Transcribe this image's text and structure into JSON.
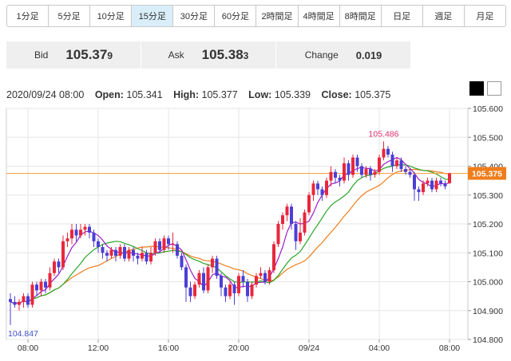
{
  "timeframes": [
    "1分足",
    "5分足",
    "10分足",
    "15分足",
    "30分足",
    "60分足",
    "2時間足",
    "4時間足",
    "8時間足",
    "日足",
    "週足",
    "月足"
  ],
  "active_timeframe": "15分足",
  "quote": {
    "bid_label": "Bid",
    "bid_main": "105.37",
    "bid_pip": "9",
    "ask_label": "Ask",
    "ask_main": "105.38",
    "ask_pip": "3",
    "change_label": "Change",
    "change_value": "0.019"
  },
  "ohlc": {
    "datetime": "2020/09/24 08:00",
    "open_label": "Open:",
    "open": "105.341",
    "high_label": "High:",
    "high": "105.377",
    "low_label": "Low:",
    "low": "105.339",
    "close_label": "Close:",
    "close": "105.375"
  },
  "theme_buttons": [
    "dark-theme",
    "light-theme"
  ],
  "colors": {
    "up": "#e8273c",
    "down": "#4b3fd4",
    "ma_short": "#9b1fc4",
    "ma_mid": "#2aa52a",
    "ma_long": "#ef7d1a",
    "price_line": "#f29b38",
    "price_tag": "#ef7d1a"
  },
  "chart_data": {
    "type": "candlestick",
    "ylim": [
      104.8,
      105.6
    ],
    "y_ticks": [
      "104.800",
      "104.900",
      "105.000",
      "105.100",
      "105.200",
      "105.300",
      "105.400",
      "105.500",
      "105.600"
    ],
    "x_ticks": [
      {
        "label": "08:00",
        "index": 4
      },
      {
        "label": "12:00",
        "index": 20
      },
      {
        "label": "16:00",
        "index": 36
      },
      {
        "label": "20:00",
        "index": 52
      },
      {
        "label": "09/24",
        "index": 68
      },
      {
        "label": "04:00",
        "index": 84
      },
      {
        "label": "08:00",
        "index": 100
      }
    ],
    "current_price": "105.375",
    "high_annotation": "105.486",
    "low_annotation": "104.847",
    "candles": [
      [
        104.94,
        104.93,
        104.96,
        104.85
      ],
      [
        104.93,
        104.92,
        104.95,
        104.91
      ],
      [
        104.92,
        104.93,
        104.94,
        104.9
      ],
      [
        104.93,
        104.95,
        104.96,
        104.91
      ],
      [
        104.95,
        104.92,
        104.96,
        104.91
      ],
      [
        104.92,
        104.99,
        105.0,
        104.91
      ],
      [
        104.99,
        104.97,
        105.0,
        104.95
      ],
      [
        104.97,
        105.0,
        105.01,
        104.95
      ],
      [
        105.0,
        104.98,
        105.01,
        104.96
      ],
      [
        104.98,
        105.03,
        105.05,
        104.97
      ],
      [
        105.03,
        105.07,
        105.08,
        105.02
      ],
      [
        105.07,
        105.05,
        105.08,
        105.03
      ],
      [
        105.05,
        105.14,
        105.16,
        105.04
      ],
      [
        105.14,
        105.15,
        105.17,
        105.12
      ],
      [
        105.15,
        105.18,
        105.2,
        105.13
      ],
      [
        105.18,
        105.16,
        105.2,
        105.14
      ],
      [
        105.16,
        105.18,
        105.2,
        105.15
      ],
      [
        105.18,
        105.19,
        105.2,
        105.16
      ],
      [
        105.19,
        105.17,
        105.2,
        105.15
      ],
      [
        105.17,
        105.14,
        105.18,
        105.12
      ],
      [
        105.14,
        105.12,
        105.15,
        105.1
      ],
      [
        105.12,
        105.1,
        105.13,
        105.08
      ],
      [
        105.1,
        105.09,
        105.11,
        105.07
      ],
      [
        105.09,
        105.11,
        105.12,
        105.08
      ],
      [
        105.11,
        105.09,
        105.12,
        105.07
      ],
      [
        105.09,
        105.12,
        105.13,
        105.08
      ],
      [
        105.12,
        105.08,
        105.13,
        105.07
      ],
      [
        105.08,
        105.11,
        105.12,
        105.07
      ],
      [
        105.11,
        105.09,
        105.12,
        105.07
      ],
      [
        105.09,
        105.08,
        105.1,
        105.06
      ],
      [
        105.08,
        105.1,
        105.12,
        105.07
      ],
      [
        105.1,
        105.07,
        105.11,
        105.06
      ],
      [
        105.07,
        105.1,
        105.12,
        105.06
      ],
      [
        105.1,
        105.14,
        105.15,
        105.09
      ],
      [
        105.14,
        105.11,
        105.15,
        105.1
      ],
      [
        105.11,
        105.15,
        105.16,
        105.1
      ],
      [
        105.15,
        105.13,
        105.16,
        105.11
      ],
      [
        105.13,
        105.13,
        105.17,
        105.1
      ],
      [
        105.13,
        105.09,
        105.14,
        105.08
      ],
      [
        105.09,
        105.05,
        105.1,
        105.04
      ],
      [
        105.05,
        104.98,
        105.06,
        104.93
      ],
      [
        104.98,
        104.95,
        105.0,
        104.93
      ],
      [
        104.95,
        104.99,
        105.0,
        104.94
      ],
      [
        104.99,
        105.03,
        105.04,
        104.98
      ],
      [
        105.03,
        104.97,
        105.05,
        104.96
      ],
      [
        104.97,
        105.05,
        105.06,
        104.96
      ],
      [
        105.05,
        105.08,
        105.09,
        105.03
      ],
      [
        105.08,
        105.02,
        105.09,
        105.01
      ],
      [
        105.02,
        104.98,
        105.03,
        104.95
      ],
      [
        104.98,
        104.95,
        104.99,
        104.93
      ],
      [
        104.95,
        104.99,
        105.0,
        104.94
      ],
      [
        104.99,
        104.96,
        105.0,
        104.92
      ],
      [
        104.96,
        105.02,
        105.03,
        104.95
      ],
      [
        105.02,
        105.0,
        105.04,
        104.98
      ],
      [
        105.0,
        104.95,
        105.01,
        104.93
      ],
      [
        104.95,
        104.99,
        105.0,
        104.94
      ],
      [
        104.99,
        105.02,
        105.03,
        104.98
      ],
      [
        105.02,
        105.03,
        105.05,
        105.01
      ],
      [
        105.03,
        105.0,
        105.04,
        104.99
      ],
      [
        105.0,
        105.04,
        105.05,
        104.99
      ],
      [
        105.04,
        105.13,
        105.14,
        105.03
      ],
      [
        105.13,
        105.2,
        105.21,
        105.12
      ],
      [
        105.2,
        105.23,
        105.24,
        105.18
      ],
      [
        105.23,
        105.26,
        105.27,
        105.21
      ],
      [
        105.26,
        105.2,
        105.27,
        105.18
      ],
      [
        105.2,
        105.14,
        105.21,
        105.11
      ],
      [
        105.14,
        105.17,
        105.22,
        105.13
      ],
      [
        105.17,
        105.24,
        105.25,
        105.16
      ],
      [
        105.24,
        105.3,
        105.31,
        105.23
      ],
      [
        105.3,
        105.34,
        105.35,
        105.28
      ],
      [
        105.34,
        105.32,
        105.35,
        105.3
      ],
      [
        105.32,
        105.3,
        105.33,
        105.28
      ],
      [
        105.3,
        105.35,
        105.36,
        105.29
      ],
      [
        105.35,
        105.38,
        105.4,
        105.33
      ],
      [
        105.38,
        105.36,
        105.39,
        105.34
      ],
      [
        105.36,
        105.35,
        105.37,
        105.33
      ],
      [
        105.35,
        105.41,
        105.43,
        105.34
      ],
      [
        105.41,
        105.37,
        105.42,
        105.35
      ],
      [
        105.37,
        105.43,
        105.44,
        105.36
      ],
      [
        105.43,
        105.4,
        105.44,
        105.38
      ],
      [
        105.4,
        105.37,
        105.41,
        105.36
      ],
      [
        105.37,
        105.39,
        105.4,
        105.36
      ],
      [
        105.39,
        105.37,
        105.4,
        105.35
      ],
      [
        105.37,
        105.38,
        105.39,
        105.36
      ],
      [
        105.38,
        105.43,
        105.44,
        105.37
      ],
      [
        105.43,
        105.46,
        105.486,
        105.42
      ],
      [
        105.46,
        105.44,
        105.47,
        105.43
      ],
      [
        105.44,
        105.4,
        105.45,
        105.38
      ],
      [
        105.4,
        105.42,
        105.43,
        105.39
      ],
      [
        105.42,
        105.39,
        105.43,
        105.38
      ],
      [
        105.39,
        105.38,
        105.4,
        105.37
      ],
      [
        105.38,
        105.37,
        105.39,
        105.36
      ],
      [
        105.37,
        105.32,
        105.38,
        105.28
      ],
      [
        105.32,
        105.31,
        105.33,
        105.28
      ],
      [
        105.31,
        105.34,
        105.35,
        105.3
      ],
      [
        105.34,
        105.35,
        105.36,
        105.33
      ],
      [
        105.35,
        105.32,
        105.36,
        105.31
      ],
      [
        105.32,
        105.35,
        105.36,
        105.31
      ],
      [
        105.35,
        105.34,
        105.36,
        105.33
      ],
      [
        105.34,
        105.33,
        105.35,
        105.32
      ],
      [
        105.341,
        105.375,
        105.377,
        105.339
      ]
    ]
  }
}
